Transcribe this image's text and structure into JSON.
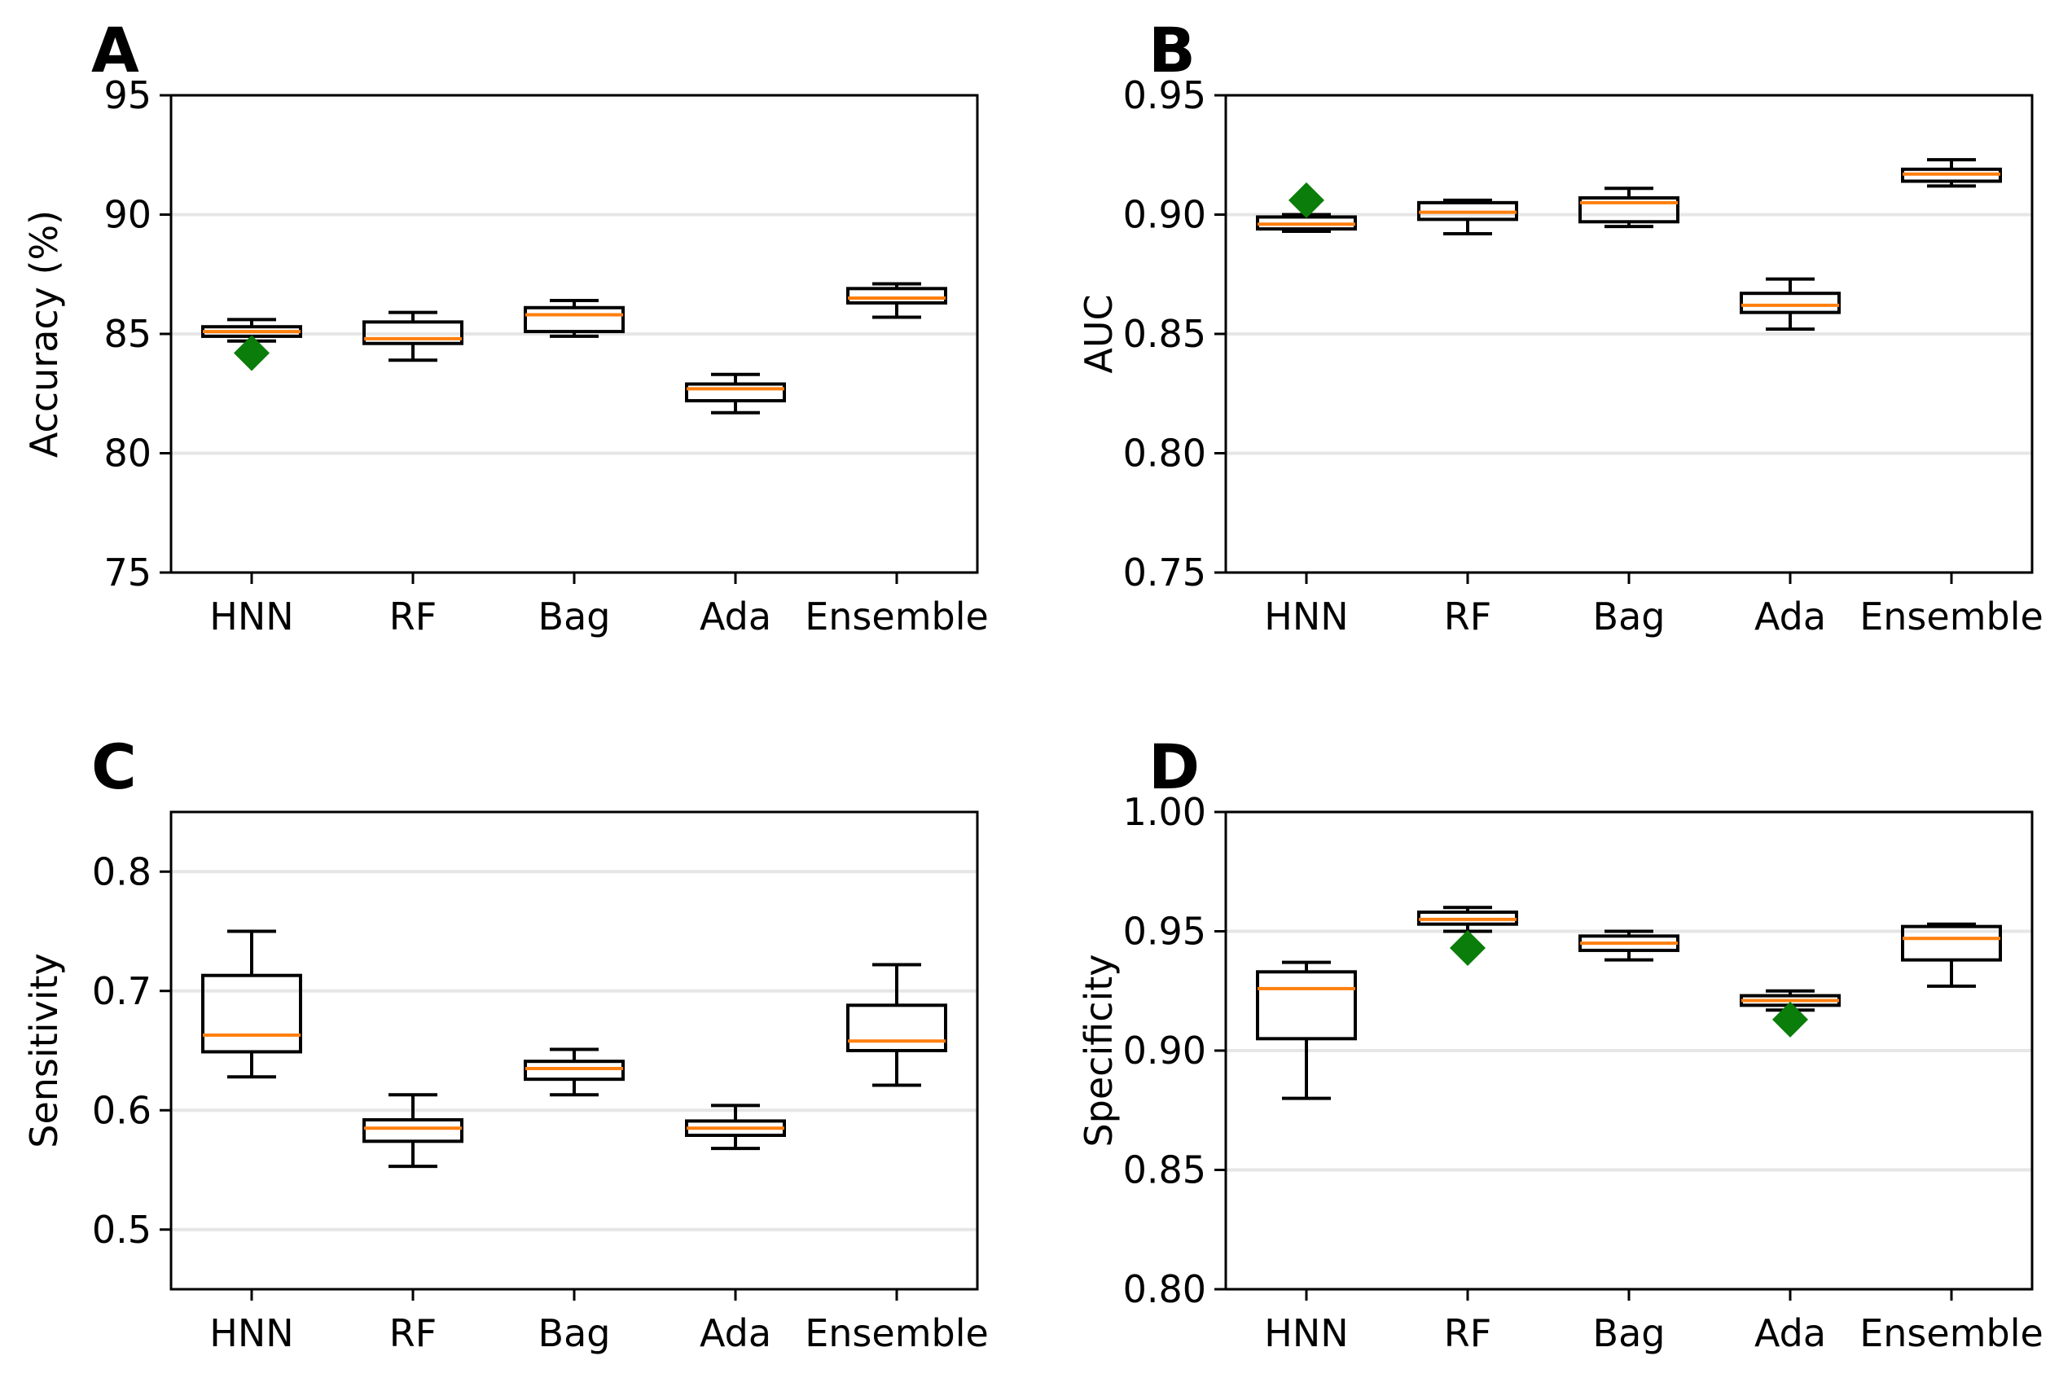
{
  "colors": {
    "median": "#ff7f0e",
    "box": "#000000",
    "marker": "#0a7d0a",
    "grid": "#e6e6e6"
  },
  "chart_data": [
    {
      "panel": "A",
      "type": "box",
      "ylabel": "Accuracy (%)",
      "categories": [
        "HNN",
        "RF",
        "Bag",
        "Ada",
        "Ensemble"
      ],
      "ylim": [
        75,
        95
      ],
      "yticks": [
        "75",
        "80",
        "85",
        "90",
        "95"
      ],
      "ytick_values": [
        75,
        80,
        85,
        90,
        95
      ],
      "grid": true,
      "boxes": [
        {
          "whislo": 84.7,
          "q1": 84.9,
          "med": 85.1,
          "q3": 85.3,
          "whishi": 85.6
        },
        {
          "whislo": 83.9,
          "q1": 84.6,
          "med": 84.8,
          "q3": 85.5,
          "whishi": 85.9
        },
        {
          "whislo": 84.9,
          "q1": 85.1,
          "med": 85.8,
          "q3": 86.1,
          "whishi": 86.4
        },
        {
          "whislo": 81.7,
          "q1": 82.2,
          "med": 82.7,
          "q3": 82.9,
          "whishi": 83.3
        },
        {
          "whislo": 85.7,
          "q1": 86.3,
          "med": 86.5,
          "q3": 86.9,
          "whishi": 87.1
        }
      ],
      "markers": [
        {
          "category": "HNN",
          "value": 84.2
        }
      ]
    },
    {
      "panel": "B",
      "type": "box",
      "ylabel": "AUC",
      "categories": [
        "HNN",
        "RF",
        "Bag",
        "Ada",
        "Ensemble"
      ],
      "ylim": [
        0.75,
        0.95
      ],
      "yticks": [
        "0.75",
        "0.80",
        "0.85",
        "0.90",
        "0.95"
      ],
      "ytick_values": [
        0.75,
        0.8,
        0.85,
        0.9,
        0.95
      ],
      "grid": true,
      "boxes": [
        {
          "whislo": 0.893,
          "q1": 0.894,
          "med": 0.896,
          "q3": 0.899,
          "whishi": 0.9
        },
        {
          "whislo": 0.892,
          "q1": 0.898,
          "med": 0.901,
          "q3": 0.905,
          "whishi": 0.906
        },
        {
          "whislo": 0.895,
          "q1": 0.897,
          "med": 0.905,
          "q3": 0.907,
          "whishi": 0.911
        },
        {
          "whislo": 0.852,
          "q1": 0.859,
          "med": 0.862,
          "q3": 0.867,
          "whishi": 0.873
        },
        {
          "whislo": 0.912,
          "q1": 0.914,
          "med": 0.917,
          "q3": 0.919,
          "whishi": 0.923
        }
      ],
      "markers": [
        {
          "category": "HNN",
          "value": 0.906
        }
      ]
    },
    {
      "panel": "C",
      "type": "box",
      "ylabel": "Sensitivity",
      "categories": [
        "HNN",
        "RF",
        "Bag",
        "Ada",
        "Ensemble"
      ],
      "ylim": [
        0.45,
        0.85
      ],
      "yticks": [
        "0.5",
        "0.6",
        "0.7",
        "0.8"
      ],
      "ytick_values": [
        0.5,
        0.6,
        0.7,
        0.8
      ],
      "grid": true,
      "boxes": [
        {
          "whislo": 0.628,
          "q1": 0.649,
          "med": 0.663,
          "q3": 0.713,
          "whishi": 0.75
        },
        {
          "whislo": 0.553,
          "q1": 0.574,
          "med": 0.585,
          "q3": 0.592,
          "whishi": 0.613
        },
        {
          "whislo": 0.613,
          "q1": 0.626,
          "med": 0.635,
          "q3": 0.641,
          "whishi": 0.651
        },
        {
          "whislo": 0.568,
          "q1": 0.579,
          "med": 0.585,
          "q3": 0.591,
          "whishi": 0.604
        },
        {
          "whislo": 0.621,
          "q1": 0.65,
          "med": 0.658,
          "q3": 0.688,
          "whishi": 0.722
        }
      ],
      "markers": []
    },
    {
      "panel": "D",
      "type": "box",
      "ylabel": "Specificity",
      "categories": [
        "HNN",
        "RF",
        "Bag",
        "Ada",
        "Ensemble"
      ],
      "ylim": [
        0.8,
        1.0
      ],
      "yticks": [
        "0.80",
        "0.85",
        "0.90",
        "0.95",
        "1.00"
      ],
      "ytick_values": [
        0.8,
        0.85,
        0.9,
        0.95,
        1.0
      ],
      "grid": true,
      "boxes": [
        {
          "whislo": 0.88,
          "q1": 0.905,
          "med": 0.926,
          "q3": 0.933,
          "whishi": 0.937
        },
        {
          "whislo": 0.95,
          "q1": 0.953,
          "med": 0.955,
          "q3": 0.958,
          "whishi": 0.96
        },
        {
          "whislo": 0.938,
          "q1": 0.942,
          "med": 0.945,
          "q3": 0.948,
          "whishi": 0.95
        },
        {
          "whislo": 0.917,
          "q1": 0.919,
          "med": 0.921,
          "q3": 0.923,
          "whishi": 0.925
        },
        {
          "whislo": 0.927,
          "q1": 0.938,
          "med": 0.947,
          "q3": 0.952,
          "whishi": 0.953
        }
      ],
      "markers": [
        {
          "category": "RF",
          "value": 0.943
        },
        {
          "category": "Ada",
          "value": 0.913
        }
      ]
    }
  ]
}
